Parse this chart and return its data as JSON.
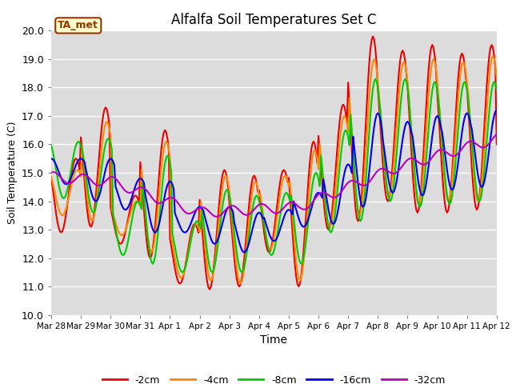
{
  "title": "Alfalfa Soil Temperatures Set C",
  "xlabel": "Time",
  "ylabel": "Soil Temperature (C)",
  "ylim": [
    10.0,
    20.0
  ],
  "yticks": [
    10.0,
    11.0,
    12.0,
    13.0,
    14.0,
    15.0,
    16.0,
    17.0,
    18.0,
    19.0,
    20.0
  ],
  "bg_color": "#dcdcdc",
  "fig_color": "#ffffff",
  "annotation_text": "TA_met",
  "annotation_box_color": "#ffffcc",
  "annotation_border_color": "#993300",
  "annotation_text_color": "#993300",
  "series_colors": {
    "-2cm": "#ee0000",
    "-4cm": "#ff8800",
    "-8cm": "#00cc00",
    "-16cm": "#0000ee",
    "-32cm": "#bb00bb"
  },
  "series_linewidth": 1.5,
  "xtick_labels": [
    "Mar 28",
    "Mar 29",
    "Mar 30",
    "Mar 31",
    "Apr 1",
    "Apr 2",
    "Apr 3",
    "Apr 4",
    "Apr 5",
    "Apr 6",
    "Apr 7",
    "Apr 8",
    "Apr 9",
    "Apr 10",
    "Apr 11",
    "Apr 12"
  ],
  "xtick_positions": [
    0,
    24,
    48,
    72,
    96,
    120,
    144,
    168,
    192,
    216,
    240,
    264,
    288,
    312,
    336,
    360
  ]
}
